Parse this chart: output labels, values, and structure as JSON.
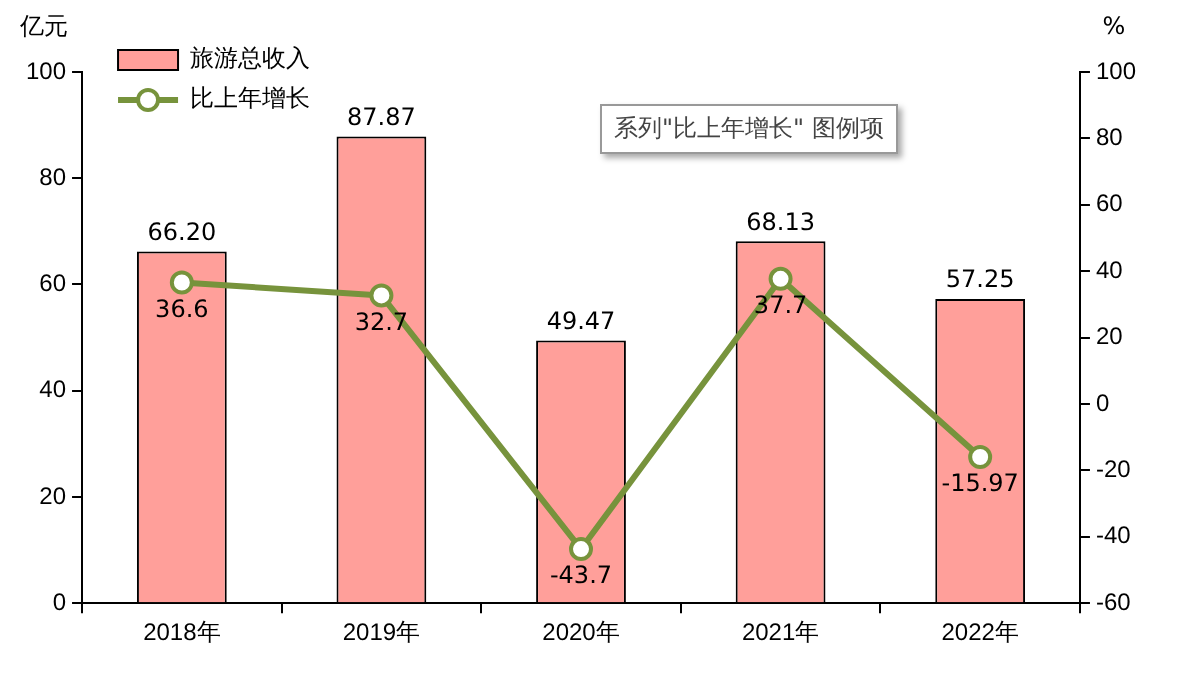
{
  "chart_data": {
    "type": "bar",
    "categories": [
      "2018年",
      "2019年",
      "2020年",
      "2021年",
      "2022年"
    ],
    "series": [
      {
        "name": "旅游总收入",
        "color": "#ff9f9a",
        "values": [
          66.2,
          87.87,
          49.47,
          68.13,
          57.25
        ],
        "value_labels": [
          "66.20",
          "87.87",
          "49.47",
          "68.13",
          "57.25"
        ]
      },
      {
        "name": "比上年增长",
        "type": "line",
        "axis": "y2",
        "color": "#77933c",
        "marker": "circle",
        "values": [
          36.6,
          32.7,
          -43.7,
          37.7,
          -15.97
        ],
        "value_labels": [
          "36.6",
          "32.7",
          "-43.7",
          "37.7",
          "-15.97"
        ]
      }
    ],
    "ylabel": "亿元",
    "y2label": "%",
    "ylim": [
      0,
      100
    ],
    "yticks": [
      0,
      20,
      40,
      60,
      80,
      100
    ],
    "y2lim": [
      -60,
      100
    ],
    "y2ticks": [
      -60,
      -40,
      -20,
      0,
      20,
      40,
      60,
      80,
      100
    ],
    "legend": "top left",
    "grid": false,
    "annotations": [
      "系列\"比上年增长\" 图例项"
    ]
  }
}
